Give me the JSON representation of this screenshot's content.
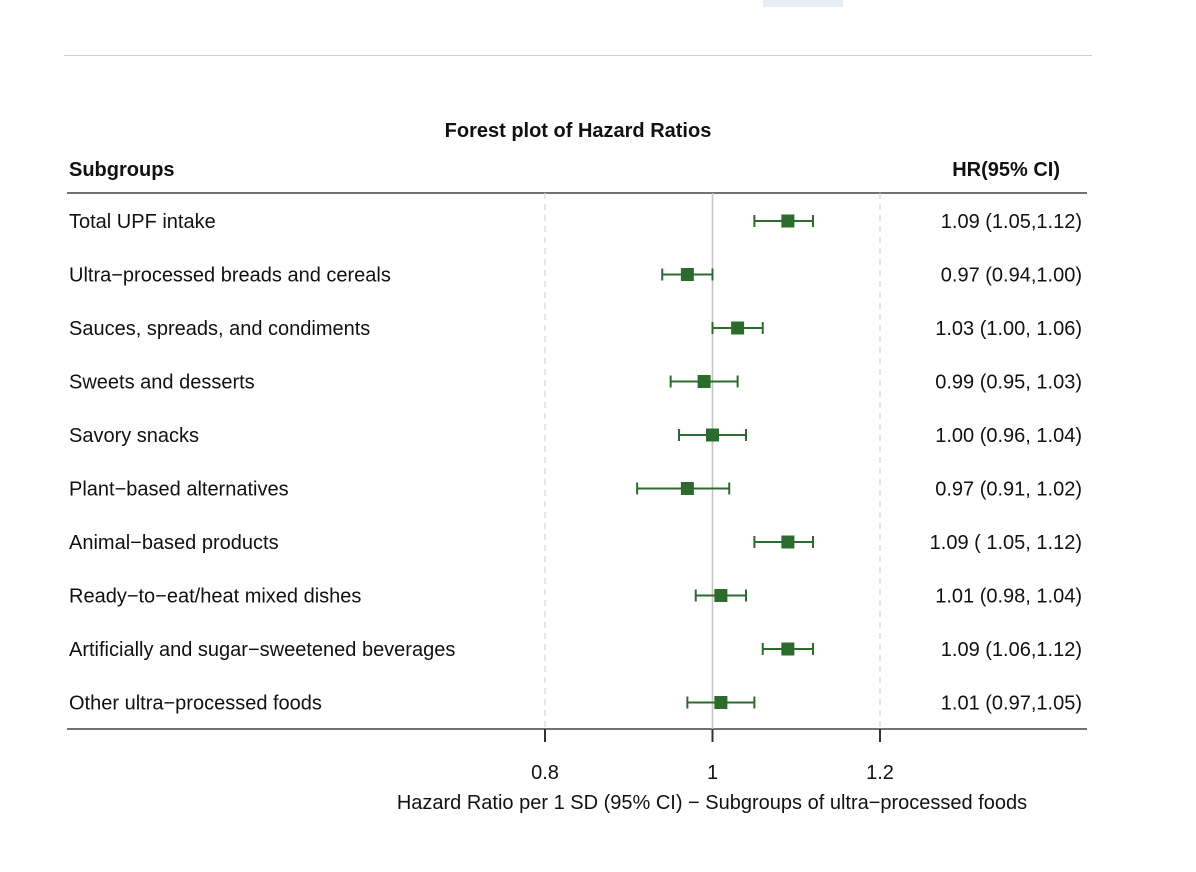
{
  "chart_data": {
    "type": "forest",
    "title": "Forest plot of Hazard Ratios",
    "left_header": "Subgroups",
    "right_header": "HR(95% CI)",
    "xlabel": "Hazard Ratio per 1 SD (95% CI) − Subgroups of ultra−processed foods",
    "xlim": [
      0.8,
      1.2
    ],
    "xticks": [
      0.8,
      1,
      1.2
    ],
    "xtick_labels": [
      "0.8",
      "1",
      "1.2"
    ],
    "reference_line": 1,
    "marker_color": "#2d6a2d",
    "rows": [
      {
        "label": "Total UPF intake",
        "hr": 1.09,
        "lo": 1.05,
        "hi": 1.12,
        "text": "1.09 (1.05,1.12)"
      },
      {
        "label": "Ultra−processed breads and cereals",
        "hr": 0.97,
        "lo": 0.94,
        "hi": 1.0,
        "text": "0.97 (0.94,1.00)"
      },
      {
        "label": "Sauces, spreads, and condiments",
        "hr": 1.03,
        "lo": 1.0,
        "hi": 1.06,
        "text": "1.03 (1.00, 1.06)"
      },
      {
        "label": "Sweets and desserts",
        "hr": 0.99,
        "lo": 0.95,
        "hi": 1.03,
        "text": "0.99 (0.95, 1.03)"
      },
      {
        "label": "Savory snacks",
        "hr": 1.0,
        "lo": 0.96,
        "hi": 1.04,
        "text": "1.00 (0.96, 1.04)"
      },
      {
        "label": "Plant−based alternatives",
        "hr": 0.97,
        "lo": 0.91,
        "hi": 1.02,
        "text": "0.97 (0.91, 1.02)"
      },
      {
        "label": "Animal−based products",
        "hr": 1.09,
        "lo": 1.05,
        "hi": 1.12,
        "text": "1.09 ( 1.05, 1.12)"
      },
      {
        "label": "Ready−to−eat/heat mixed dishes",
        "hr": 1.01,
        "lo": 0.98,
        "hi": 1.04,
        "text": "1.01 (0.98, 1.04)"
      },
      {
        "label": "Artificially and sugar−sweetened beverages",
        "hr": 1.09,
        "lo": 1.06,
        "hi": 1.12,
        "text": "1.09 (1.06,1.12)"
      },
      {
        "label": "Other ultra−processed foods",
        "hr": 1.01,
        "lo": 0.97,
        "hi": 1.05,
        "text": "1.01 (0.97,1.05)"
      }
    ]
  }
}
